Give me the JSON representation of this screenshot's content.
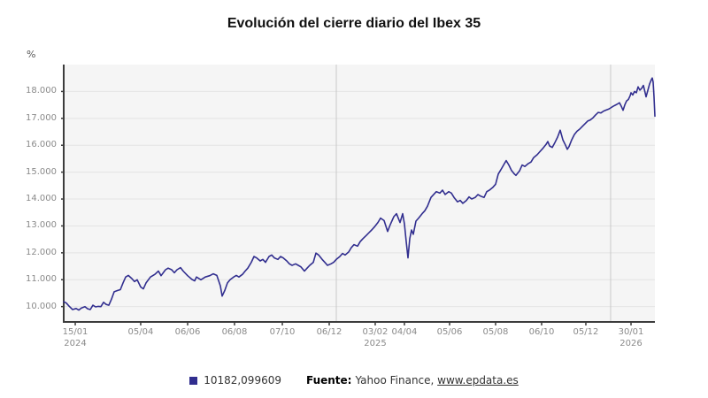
{
  "legend": {
    "source_prefix": "Fuente:",
    "source_text": "Yahoo Finance, ",
    "source_link": "www.epdata.es"
  },
  "colors": {
    "line": "#312e8f",
    "plot_bg": "#f5f5f5",
    "grid": "#e3e3e3",
    "separator": "#c9c9c9",
    "axis": "#3c3c3c",
    "tick_text": "#8a8a8a"
  },
  "chart_data": {
    "type": "line",
    "title": "Evolución del cierre diario del Ibex 35",
    "ylabel": "%",
    "xlabel": "",
    "ylim": [
      9430,
      19000
    ],
    "grid": "horizontal",
    "legend_position": "bottom-center",
    "y_ticks": [
      {
        "value": 10000,
        "label": "10.000"
      },
      {
        "value": 11000,
        "label": "11.000"
      },
      {
        "value": 12000,
        "label": "12.000"
      },
      {
        "value": 13000,
        "label": "13.000"
      },
      {
        "value": 14000,
        "label": "14.000"
      },
      {
        "value": 15000,
        "label": "15.000"
      },
      {
        "value": 16000,
        "label": "16.000"
      },
      {
        "value": 17000,
        "label": "17.000"
      },
      {
        "value": 18000,
        "label": "18.000"
      }
    ],
    "x_ticks": [
      {
        "label": "15/01",
        "year": "2024",
        "x": 0.0195
      },
      {
        "label": "05/04",
        "year": "",
        "x": 0.1302
      },
      {
        "label": "06/06",
        "year": "",
        "x": 0.2096
      },
      {
        "label": "06/08",
        "year": "",
        "x": 0.2889
      },
      {
        "label": "07/10",
        "year": "",
        "x": 0.3698
      },
      {
        "label": "06/12",
        "year": "",
        "x": 0.4491
      },
      {
        "label": "03/02",
        "year": "2025",
        "x": 0.5269
      },
      {
        "label": "04/04",
        "year": "",
        "x": 0.5763
      },
      {
        "label": "05/06",
        "year": "",
        "x": 0.6527
      },
      {
        "label": "05/08",
        "year": "",
        "x": 0.7305
      },
      {
        "label": "06/10",
        "year": "",
        "x": 0.8084
      },
      {
        "label": "05/12",
        "year": "",
        "x": 0.8832
      },
      {
        "label": "30/01",
        "year": "2026",
        "x": 0.9596
      }
    ],
    "year_separators": [
      0.4611,
      0.9251
    ],
    "series": [
      {
        "name": "10182,099609",
        "color": "#312e8f",
        "points": [
          [
            0.0,
            10182
          ],
          [
            0.0045,
            10130
          ],
          [
            0.009,
            10020
          ],
          [
            0.015,
            9890
          ],
          [
            0.021,
            9930
          ],
          [
            0.0254,
            9870
          ],
          [
            0.0299,
            9950
          ],
          [
            0.0359,
            10000
          ],
          [
            0.0404,
            9920
          ],
          [
            0.0449,
            9890
          ],
          [
            0.0494,
            10050
          ],
          [
            0.0539,
            9990
          ],
          [
            0.0584,
            10010
          ],
          [
            0.0629,
            10000
          ],
          [
            0.0674,
            10160
          ],
          [
            0.0719,
            10080
          ],
          [
            0.0763,
            10050
          ],
          [
            0.0808,
            10280
          ],
          [
            0.0853,
            10550
          ],
          [
            0.0913,
            10600
          ],
          [
            0.0958,
            10630
          ],
          [
            0.1003,
            10880
          ],
          [
            0.1048,
            11100
          ],
          [
            0.1093,
            11160
          ],
          [
            0.1153,
            11040
          ],
          [
            0.1198,
            10930
          ],
          [
            0.1243,
            11000
          ],
          [
            0.1302,
            10730
          ],
          [
            0.1347,
            10660
          ],
          [
            0.1392,
            10880
          ],
          [
            0.1467,
            11100
          ],
          [
            0.1542,
            11200
          ],
          [
            0.1602,
            11320
          ],
          [
            0.1647,
            11150
          ],
          [
            0.1722,
            11370
          ],
          [
            0.1766,
            11430
          ],
          [
            0.1826,
            11370
          ],
          [
            0.1871,
            11260
          ],
          [
            0.1916,
            11370
          ],
          [
            0.1976,
            11450
          ],
          [
            0.2021,
            11320
          ],
          [
            0.2096,
            11150
          ],
          [
            0.2171,
            11010
          ],
          [
            0.2216,
            10960
          ],
          [
            0.2246,
            11100
          ],
          [
            0.232,
            11000
          ],
          [
            0.2395,
            11100
          ],
          [
            0.247,
            11150
          ],
          [
            0.253,
            11220
          ],
          [
            0.259,
            11160
          ],
          [
            0.265,
            10770
          ],
          [
            0.268,
            10390
          ],
          [
            0.2725,
            10600
          ],
          [
            0.2769,
            10880
          ],
          [
            0.2814,
            11000
          ],
          [
            0.2874,
            11100
          ],
          [
            0.2919,
            11160
          ],
          [
            0.2964,
            11100
          ],
          [
            0.3024,
            11200
          ],
          [
            0.3069,
            11320
          ],
          [
            0.3114,
            11430
          ],
          [
            0.3174,
            11650
          ],
          [
            0.3219,
            11865
          ],
          [
            0.3263,
            11810
          ],
          [
            0.3323,
            11700
          ],
          [
            0.3368,
            11755
          ],
          [
            0.3413,
            11645
          ],
          [
            0.3473,
            11865
          ],
          [
            0.3518,
            11920
          ],
          [
            0.3563,
            11810
          ],
          [
            0.3623,
            11755
          ],
          [
            0.3668,
            11865
          ],
          [
            0.3713,
            11810
          ],
          [
            0.3772,
            11700
          ],
          [
            0.3817,
            11590
          ],
          [
            0.3862,
            11535
          ],
          [
            0.3922,
            11590
          ],
          [
            0.3967,
            11535
          ],
          [
            0.4012,
            11480
          ],
          [
            0.4072,
            11320
          ],
          [
            0.4117,
            11430
          ],
          [
            0.4162,
            11535
          ],
          [
            0.4222,
            11645
          ],
          [
            0.4266,
            11990
          ],
          [
            0.4311,
            11920
          ],
          [
            0.4371,
            11755
          ],
          [
            0.4416,
            11645
          ],
          [
            0.4461,
            11535
          ],
          [
            0.4521,
            11590
          ],
          [
            0.4566,
            11645
          ],
          [
            0.4611,
            11755
          ],
          [
            0.4671,
            11865
          ],
          [
            0.4716,
            11975
          ],
          [
            0.476,
            11920
          ],
          [
            0.482,
            12030
          ],
          [
            0.4865,
            12195
          ],
          [
            0.491,
            12305
          ],
          [
            0.497,
            12250
          ],
          [
            0.5015,
            12415
          ],
          [
            0.506,
            12525
          ],
          [
            0.512,
            12650
          ],
          [
            0.5165,
            12750
          ],
          [
            0.521,
            12850
          ],
          [
            0.5254,
            12960
          ],
          [
            0.5314,
            13125
          ],
          [
            0.5359,
            13290
          ],
          [
            0.5419,
            13200
          ],
          [
            0.5479,
            12795
          ],
          [
            0.5524,
            13050
          ],
          [
            0.5584,
            13345
          ],
          [
            0.5629,
            13455
          ],
          [
            0.5689,
            13125
          ],
          [
            0.5734,
            13455
          ],
          [
            0.5763,
            13070
          ],
          [
            0.5793,
            12415
          ],
          [
            0.5823,
            11810
          ],
          [
            0.5853,
            12525
          ],
          [
            0.5883,
            12850
          ],
          [
            0.5913,
            12690
          ],
          [
            0.5958,
            13180
          ],
          [
            0.6003,
            13290
          ],
          [
            0.6063,
            13455
          ],
          [
            0.6108,
            13565
          ],
          [
            0.6153,
            13730
          ],
          [
            0.6213,
            14060
          ],
          [
            0.6257,
            14170
          ],
          [
            0.6302,
            14275
          ],
          [
            0.6362,
            14220
          ],
          [
            0.6407,
            14330
          ],
          [
            0.6452,
            14170
          ],
          [
            0.6512,
            14275
          ],
          [
            0.6557,
            14220
          ],
          [
            0.6602,
            14060
          ],
          [
            0.6662,
            13895
          ],
          [
            0.6707,
            13950
          ],
          [
            0.6751,
            13840
          ],
          [
            0.6811,
            13950
          ],
          [
            0.6856,
            14080
          ],
          [
            0.6901,
            14000
          ],
          [
            0.6961,
            14060
          ],
          [
            0.7006,
            14165
          ],
          [
            0.7051,
            14110
          ],
          [
            0.7111,
            14060
          ],
          [
            0.7156,
            14275
          ],
          [
            0.7201,
            14330
          ],
          [
            0.7261,
            14440
          ],
          [
            0.7305,
            14550
          ],
          [
            0.735,
            14930
          ],
          [
            0.741,
            15150
          ],
          [
            0.7455,
            15320
          ],
          [
            0.7485,
            15430
          ],
          [
            0.753,
            15265
          ],
          [
            0.7575,
            15060
          ],
          [
            0.762,
            14940
          ],
          [
            0.765,
            14880
          ],
          [
            0.771,
            15045
          ],
          [
            0.7754,
            15265
          ],
          [
            0.7799,
            15210
          ],
          [
            0.7859,
            15320
          ],
          [
            0.7904,
            15375
          ],
          [
            0.7949,
            15540
          ],
          [
            0.8009,
            15650
          ],
          [
            0.8054,
            15760
          ],
          [
            0.8099,
            15870
          ],
          [
            0.8159,
            16030
          ],
          [
            0.8189,
            16140
          ],
          [
            0.8219,
            15975
          ],
          [
            0.8263,
            15920
          ],
          [
            0.8308,
            16100
          ],
          [
            0.8353,
            16300
          ],
          [
            0.8398,
            16560
          ],
          [
            0.8443,
            16200
          ],
          [
            0.8488,
            16000
          ],
          [
            0.8518,
            15850
          ],
          [
            0.8548,
            15950
          ],
          [
            0.8593,
            16200
          ],
          [
            0.8638,
            16400
          ],
          [
            0.8683,
            16520
          ],
          [
            0.8728,
            16600
          ],
          [
            0.8773,
            16700
          ],
          [
            0.8817,
            16800
          ],
          [
            0.8862,
            16900
          ],
          [
            0.8907,
            16940
          ],
          [
            0.8952,
            17020
          ],
          [
            0.8997,
            17130
          ],
          [
            0.9042,
            17220
          ],
          [
            0.9087,
            17200
          ],
          [
            0.9132,
            17270
          ],
          [
            0.9177,
            17310
          ],
          [
            0.9221,
            17350
          ],
          [
            0.9251,
            17390
          ],
          [
            0.9296,
            17450
          ],
          [
            0.9356,
            17520
          ],
          [
            0.9401,
            17580
          ],
          [
            0.9431,
            17450
          ],
          [
            0.9461,
            17300
          ],
          [
            0.9491,
            17500
          ],
          [
            0.9521,
            17650
          ],
          [
            0.9551,
            17700
          ],
          [
            0.9581,
            17840
          ],
          [
            0.9596,
            17950
          ],
          [
            0.9626,
            17870
          ],
          [
            0.9656,
            18000
          ],
          [
            0.9686,
            17950
          ],
          [
            0.9716,
            18170
          ],
          [
            0.9746,
            18050
          ],
          [
            0.9776,
            18115
          ],
          [
            0.9806,
            18225
          ],
          [
            0.9836,
            17950
          ],
          [
            0.9851,
            17800
          ],
          [
            0.9881,
            18050
          ],
          [
            0.991,
            18280
          ],
          [
            0.994,
            18440
          ],
          [
            0.9955,
            18500
          ],
          [
            0.997,
            18350
          ],
          [
            0.9985,
            17800
          ],
          [
            1,
            17080
          ]
        ]
      }
    ]
  }
}
